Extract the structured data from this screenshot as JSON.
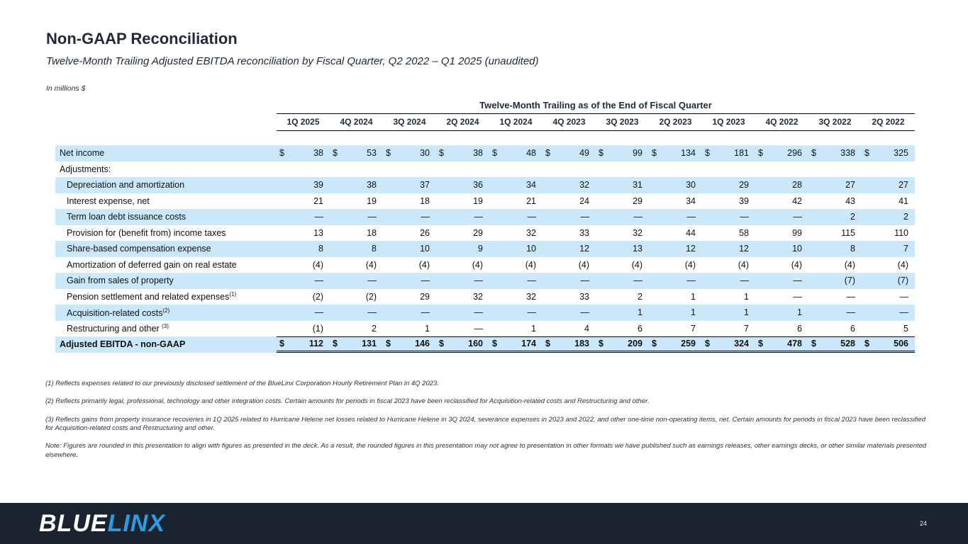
{
  "slide": {
    "title": "Non-GAAP Reconciliation",
    "subtitle": "Twelve-Month Trailing Adjusted EBITDA reconciliation by Fiscal Quarter, Q2 2022 – Q1 2025 (unaudited)",
    "units_label": "In millions $",
    "page_number": "24"
  },
  "logo": {
    "blue": "BLUE",
    "linx": "LINX"
  },
  "colors": {
    "row_stripe_blue": "#cae8f9",
    "footer_navy": "#192430",
    "logo_blue": "#2d9ce0",
    "ink": "#1f2a38"
  },
  "table": {
    "span_header": "Twelve-Month Trailing as of the End of Fiscal Quarter",
    "currency_symbol": "$",
    "columns": [
      "1Q 2025",
      "4Q 2024",
      "3Q 2024",
      "2Q 2024",
      "1Q 2024",
      "4Q 2023",
      "3Q 2023",
      "2Q 2023",
      "1Q 2023",
      "4Q 2022",
      "3Q 2022",
      "2Q 2022"
    ],
    "rows": [
      {
        "label": "Net income",
        "sup": "",
        "indent": false,
        "bold": false,
        "shaded": true,
        "dollar": true,
        "total": false,
        "values": [
          "38",
          "53",
          "30",
          "38",
          "48",
          "49",
          "99",
          "134",
          "181",
          "296",
          "338",
          "325"
        ]
      },
      {
        "label": "Adjustments:",
        "sup": "",
        "indent": false,
        "bold": false,
        "shaded": false,
        "dollar": false,
        "total": false,
        "values": []
      },
      {
        "label": "Depreciation and amortization",
        "sup": "",
        "indent": true,
        "bold": false,
        "shaded": true,
        "dollar": false,
        "total": false,
        "values": [
          "39",
          "38",
          "37",
          "36",
          "34",
          "32",
          "31",
          "30",
          "29",
          "28",
          "27",
          "27"
        ]
      },
      {
        "label": "Interest expense, net",
        "sup": "",
        "indent": true,
        "bold": false,
        "shaded": false,
        "dollar": false,
        "total": false,
        "values": [
          "21",
          "19",
          "18",
          "19",
          "21",
          "24",
          "29",
          "34",
          "39",
          "42",
          "43",
          "41"
        ]
      },
      {
        "label": "Term loan debt issuance costs",
        "sup": "",
        "indent": true,
        "bold": false,
        "shaded": true,
        "dollar": false,
        "total": false,
        "values": [
          "—",
          "—",
          "—",
          "—",
          "—",
          "—",
          "—",
          "—",
          "—",
          "—",
          "2",
          "2"
        ]
      },
      {
        "label": "Provision for (benefit from) income taxes",
        "sup": "",
        "indent": true,
        "bold": false,
        "shaded": false,
        "dollar": false,
        "total": false,
        "values": [
          "13",
          "18",
          "26",
          "29",
          "32",
          "33",
          "32",
          "44",
          "58",
          "99",
          "115",
          "110"
        ]
      },
      {
        "label": "Share-based compensation expense",
        "sup": "",
        "indent": true,
        "bold": false,
        "shaded": true,
        "dollar": false,
        "total": false,
        "values": [
          "8",
          "8",
          "10",
          "9",
          "10",
          "12",
          "13",
          "12",
          "12",
          "10",
          "8",
          "7"
        ]
      },
      {
        "label": "Amortization of deferred gain on real estate",
        "sup": "",
        "indent": true,
        "bold": false,
        "shaded": false,
        "dollar": false,
        "total": false,
        "values": [
          "(4)",
          "(4)",
          "(4)",
          "(4)",
          "(4)",
          "(4)",
          "(4)",
          "(4)",
          "(4)",
          "(4)",
          "(4)",
          "(4)"
        ]
      },
      {
        "label": "Gain from sales of property",
        "sup": "",
        "indent": true,
        "bold": false,
        "shaded": true,
        "dollar": false,
        "total": false,
        "values": [
          "—",
          "—",
          "—",
          "—",
          "—",
          "—",
          "—",
          "—",
          "—",
          "—",
          "(7)",
          "(7)"
        ]
      },
      {
        "label": "Pension settlement and related expenses",
        "sup": "(1)",
        "indent": true,
        "bold": false,
        "shaded": false,
        "dollar": false,
        "total": false,
        "values": [
          "(2)",
          "(2)",
          "29",
          "32",
          "32",
          "33",
          "2",
          "1",
          "1",
          "—",
          "—",
          "—"
        ]
      },
      {
        "label": "Acquisition-related costs",
        "sup": "(2)",
        "indent": true,
        "bold": false,
        "shaded": true,
        "dollar": false,
        "total": false,
        "values": [
          "—",
          "—",
          "—",
          "—",
          "—",
          "—",
          "1",
          "1",
          "1",
          "1",
          "—",
          "—"
        ]
      },
      {
        "label": "Restructuring and other ",
        "sup": "(3)",
        "indent": true,
        "bold": false,
        "shaded": false,
        "dollar": false,
        "total": false,
        "values": [
          "(1)",
          "2",
          "1",
          "—",
          "1",
          "4",
          "6",
          "7",
          "7",
          "6",
          "6",
          "5"
        ]
      },
      {
        "label": "Adjusted EBITDA - non-GAAP",
        "sup": "",
        "indent": false,
        "bold": true,
        "shaded": true,
        "dollar": true,
        "total": true,
        "values": [
          "112",
          "131",
          "146",
          "160",
          "174",
          "183",
          "209",
          "259",
          "324",
          "478",
          "528",
          "506"
        ]
      }
    ]
  },
  "footnotes": [
    "(1) Reflects expenses related to our previously disclosed settlement of the BlueLinx Corporation Hourly Retirement Plan in 4Q 2023.",
    "(2) Reflects primarily legal, professional, technology and other integration costs. Certain amounts for periods in fiscal 2023 have been reclassified for Acquisition-related costs and Restructuring and other.",
    "(3) Reflects gains from property insurance recoveries in 1Q 2025 related to Hurricane Helene net losses related to Hurricane Helene in 3Q 2024, severance expenses in 2023 and 2022, and other one-time non-operating items, net. Certain amounts for periods in fiscal 2023 have been reclassified for Acquisition-related costs and Restructuring and other.",
    "Note: Figures are rounded in this presentation to align with figures as presented in the deck.  As a result, the rounded figures in this presentation may not agree to presentation in other formats we have published such as earnings releases, other earnings decks, or other similar materials presented elsewhere."
  ]
}
